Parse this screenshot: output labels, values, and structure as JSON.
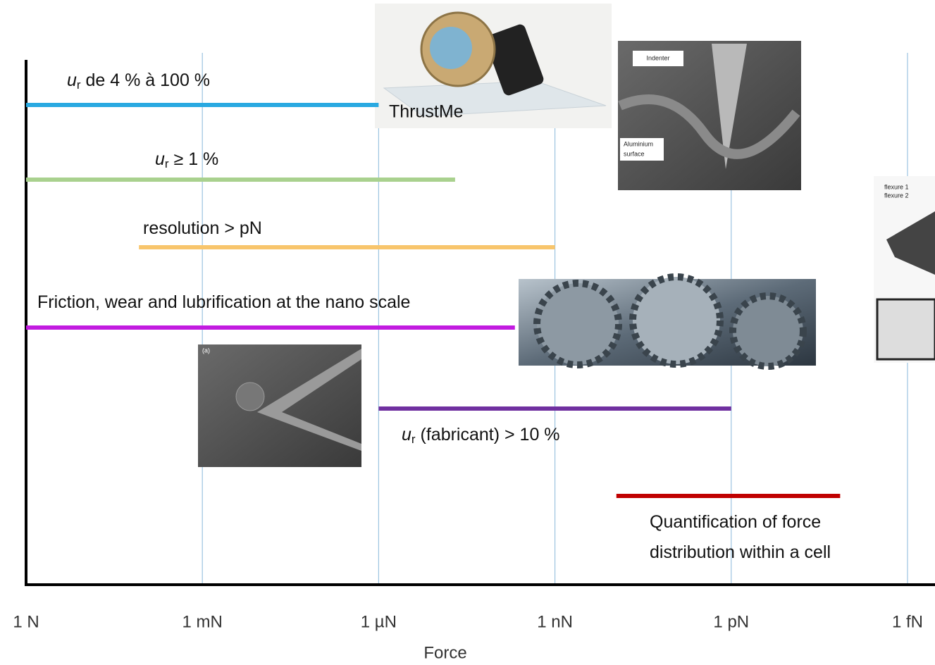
{
  "chart_data": {
    "type": "range-bar",
    "x_label": "Force",
    "xscale": "log",
    "xlim": [
      1,
      3.5e-16
    ],
    "xticks": [
      {
        "value": 1,
        "label": "1 N"
      },
      {
        "value": 0.001,
        "label": "1 mN"
      },
      {
        "value": 1e-06,
        "label": "1 µN"
      },
      {
        "value": 1e-09,
        "label": "1 nN"
      },
      {
        "value": 1e-12,
        "label": "1 pN"
      },
      {
        "value": 1e-15,
        "label": "1 fN"
      }
    ],
    "grid": true,
    "series": [
      {
        "label": {
          "symbol": "u",
          "sub": "r",
          "text": " de 4 % à 100 %"
        },
        "color": "#29a9e1",
        "start": 1,
        "end": 1e-06
      },
      {
        "label": {
          "symbol": "u",
          "sub": "r",
          "text": " ≥ 1 %"
        },
        "color": "#a9d18e",
        "start": 1,
        "end": 5e-08
      },
      {
        "label": {
          "text": "resolution > pN"
        },
        "color": "#f8c56c",
        "start": 0.012,
        "end": 1e-09
      },
      {
        "label": {
          "text": "Friction, wear and lubrification at the nano scale"
        },
        "color": "#c21be0",
        "start": 1,
        "end": 4.8e-09
      },
      {
        "label": {
          "symbol": "u",
          "sub": "r",
          "text": " (fabricant) > 10 %"
        },
        "color": "#7030a0",
        "start": 1e-06,
        "end": 1e-12
      },
      {
        "label": {
          "lines": [
            "Quantification of force",
            "distribution  within a cell"
          ]
        },
        "color": "#c00000",
        "start": 9e-11,
        "end": 1.4e-14
      }
    ],
    "images": {
      "thruster": "ThrustMe",
      "indenter": "Indenter",
      "surface": [
        "Aluminium",
        "surface"
      ],
      "sem": "(a)",
      "flexures": [
        "flexure 1",
        "flexure 2"
      ]
    }
  }
}
